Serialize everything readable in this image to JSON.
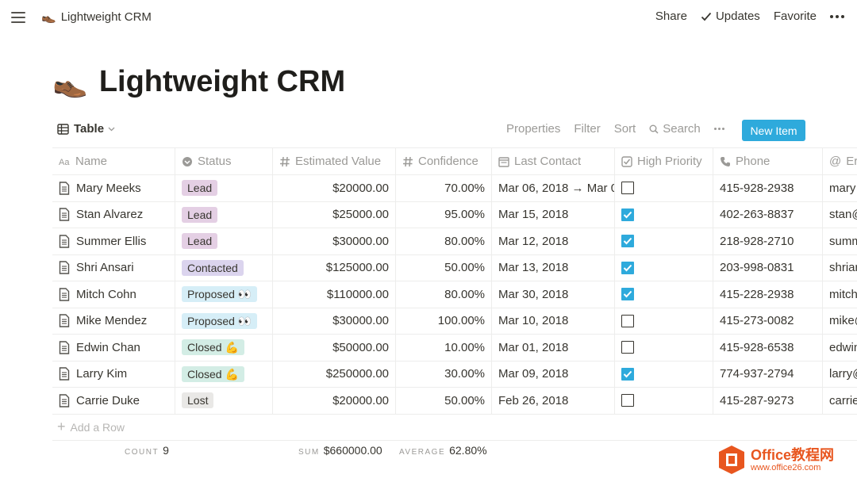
{
  "topbar": {
    "page_emoji": "👞",
    "breadcrumb": "Lightweight CRM",
    "share": "Share",
    "updates": "Updates",
    "favorite": "Favorite"
  },
  "page": {
    "emoji": "👞",
    "title": "Lightweight CRM"
  },
  "viewbar": {
    "view_name": "Table",
    "properties": "Properties",
    "filter": "Filter",
    "sort": "Sort",
    "search": "Search",
    "new_item": "New Item"
  },
  "columns": {
    "name": "Name",
    "status": "Status",
    "value": "Estimated Value",
    "confidence": "Confidence",
    "last_contact": "Last Contact",
    "priority": "High Priority",
    "phone": "Phone",
    "email": "Er"
  },
  "status_colors": {
    "Lead": "#e4cfe4",
    "Contacted": "#dbd4ee",
    "Proposed": "#d6eef7",
    "Closed": "#d3ede5",
    "Lost": "#e9e8e6"
  },
  "rows": [
    {
      "name": "Mary Meeks",
      "status": "Lead",
      "value": "$20000.00",
      "confidence": "70.00%",
      "last_contact": "Mar 06, 2018 → Mar 0",
      "priority": false,
      "phone": "415-928-2938",
      "email": "mary"
    },
    {
      "name": "Stan Alvarez",
      "status": "Lead",
      "value": "$25000.00",
      "confidence": "95.00%",
      "last_contact": "Mar 15, 2018",
      "priority": true,
      "phone": "402-263-8837",
      "email": "stan@"
    },
    {
      "name": "Summer Ellis",
      "status": "Lead",
      "value": "$30000.00",
      "confidence": "80.00%",
      "last_contact": "Mar 12, 2018",
      "priority": true,
      "phone": "218-928-2710",
      "email": "summ"
    },
    {
      "name": "Shri Ansari",
      "status": "Contacted",
      "value": "$125000.00",
      "confidence": "50.00%",
      "last_contact": "Mar 13, 2018",
      "priority": true,
      "phone": "203-998-0831",
      "email": "shriar"
    },
    {
      "name": "Mitch Cohn",
      "status": "Proposed 👀",
      "status_key": "Proposed",
      "value": "$110000.00",
      "confidence": "80.00%",
      "last_contact": "Mar 30, 2018",
      "priority": true,
      "phone": "415-228-2938",
      "email": "mitch"
    },
    {
      "name": "Mike Mendez",
      "status": "Proposed 👀",
      "status_key": "Proposed",
      "value": "$30000.00",
      "confidence": "100.00%",
      "last_contact": "Mar 10, 2018",
      "priority": false,
      "phone": "415-273-0082",
      "email": "mike@"
    },
    {
      "name": "Edwin Chan",
      "status": "Closed 💪",
      "status_key": "Closed",
      "value": "$50000.00",
      "confidence": "10.00%",
      "last_contact": "Mar 01, 2018",
      "priority": false,
      "phone": "415-928-6538",
      "email": "edwin"
    },
    {
      "name": "Larry Kim",
      "status": "Closed 💪",
      "status_key": "Closed",
      "value": "$250000.00",
      "confidence": "30.00%",
      "last_contact": "Mar 09, 2018",
      "priority": true,
      "phone": "774-937-2794",
      "email": "larry@"
    },
    {
      "name": "Carrie Duke",
      "status": "Lost",
      "value": "$20000.00",
      "confidence": "50.00%",
      "last_contact": "Feb 26, 2018",
      "priority": false,
      "phone": "415-287-9273",
      "email": "carrie"
    }
  ],
  "add_row": "Add a Row",
  "aggregates": {
    "count_label": "COUNT",
    "count_value": "9",
    "sum_label": "SUM",
    "sum_value": "$660000.00",
    "avg_label": "AVERAGE",
    "avg_value": "62.80%"
  },
  "watermark": {
    "line1": "Office教程网",
    "line2": "www.office26.com"
  }
}
